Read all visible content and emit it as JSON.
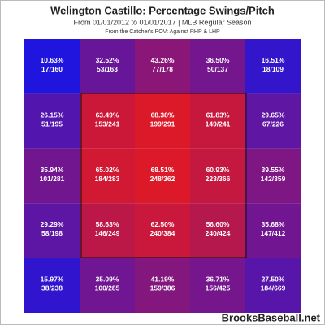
{
  "chart_data": {
    "type": "heatmap",
    "title": "Welington Castillo: Percentage Swings/Pitch",
    "subtitle": "From 01/01/2012 to 01/01/2017 | MLB Regular Season",
    "note": "From the Catcher's POV:  Against RHP & LHP",
    "source": "BrooksBaseball.net",
    "values": [
      [
        10.63,
        32.52,
        43.26,
        36.5,
        16.51
      ],
      [
        26.15,
        63.49,
        68.38,
        61.83,
        29.65
      ],
      [
        35.94,
        65.02,
        68.51,
        60.93,
        39.55
      ],
      [
        29.29,
        58.63,
        62.5,
        56.6,
        35.68
      ],
      [
        15.97,
        35.09,
        41.19,
        36.71,
        27.5
      ]
    ],
    "value_labels": [
      [
        "10.63%",
        "32.52%",
        "43.26%",
        "36.50%",
        "16.51%"
      ],
      [
        "26.15%",
        "63.49%",
        "68.38%",
        "61.83%",
        "29.65%"
      ],
      [
        "35.94%",
        "65.02%",
        "68.51%",
        "60.93%",
        "39.55%"
      ],
      [
        "29.29%",
        "58.63%",
        "62.50%",
        "56.60%",
        "35.68%"
      ],
      [
        "15.97%",
        "35.09%",
        "41.19%",
        "36.71%",
        "27.50%"
      ]
    ],
    "counts": [
      [
        "17/160",
        "53/163",
        "77/178",
        "50/137",
        "18/109"
      ],
      [
        "51/195",
        "153/241",
        "199/291",
        "149/241",
        "67/226"
      ],
      [
        "101/281",
        "184/283",
        "248/362",
        "223/366",
        "142/359"
      ],
      [
        "58/198",
        "146/249",
        "240/384",
        "240/424",
        "147/412"
      ],
      [
        "38/238",
        "100/285",
        "159/386",
        "156/425",
        "184/669"
      ]
    ]
  }
}
